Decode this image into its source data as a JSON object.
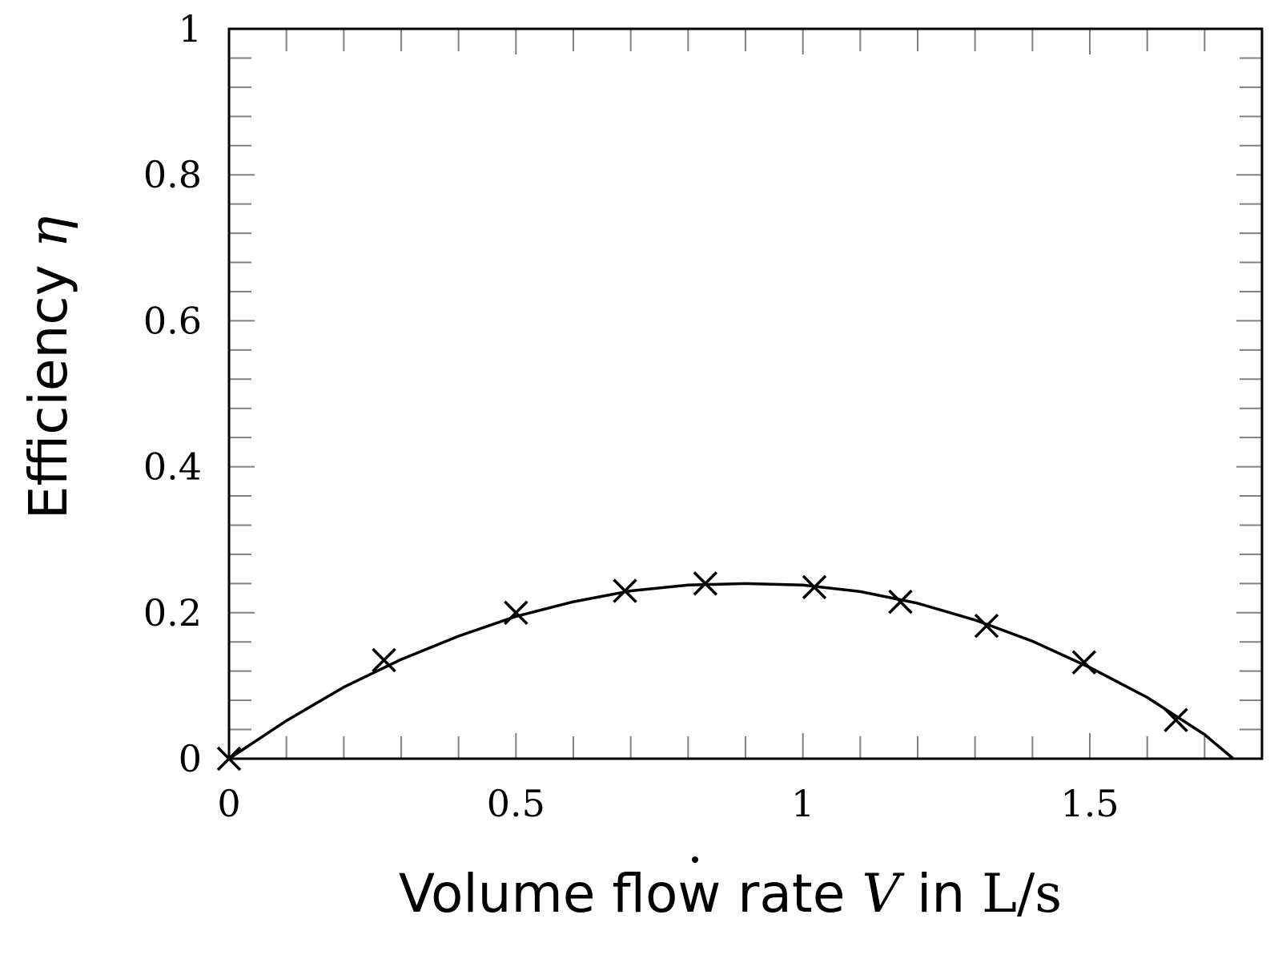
{
  "chart_data": {
    "type": "line",
    "title": "",
    "xlabel": {
      "prefix": "Volume flow rate ",
      "symbol": "V",
      "middle": " in ",
      "unit": "L/s"
    },
    "ylabel": {
      "prefix": "Efficiency ",
      "symbol": "η"
    },
    "xlim": [
      0,
      1.8
    ],
    "ylim": [
      0,
      1
    ],
    "xticks": [
      {
        "value": 0,
        "label": "0"
      },
      {
        "value": 0.5,
        "label": "0.5"
      },
      {
        "value": 1,
        "label": "1"
      },
      {
        "value": 1.5,
        "label": "1.5"
      }
    ],
    "yticks": [
      {
        "value": 0,
        "label": "0"
      },
      {
        "value": 0.2,
        "label": "0.2"
      },
      {
        "value": 0.4,
        "label": "0.4"
      },
      {
        "value": 0.6,
        "label": "0.6"
      },
      {
        "value": 0.8,
        "label": "0.8"
      },
      {
        "value": 1,
        "label": "1"
      }
    ],
    "x_minor_step": 0.1,
    "y_minor_step": 0.04,
    "grid": false,
    "series": [
      {
        "kind": "measured",
        "marker": "cross",
        "x": [
          0,
          0.27,
          0.5,
          0.69,
          0.83,
          1.02,
          1.17,
          1.32,
          1.49,
          1.65
        ],
        "y": [
          0,
          0.135,
          0.2,
          0.23,
          0.24,
          0.235,
          0.215,
          0.182,
          0.132,
          0.053
        ]
      },
      {
        "kind": "fit",
        "line": "solid",
        "x": [
          0,
          0.1,
          0.2,
          0.3,
          0.4,
          0.5,
          0.6,
          0.7,
          0.8,
          0.9,
          1.0,
          1.1,
          1.2,
          1.3,
          1.4,
          1.5,
          1.6,
          1.7,
          1.75
        ],
        "y": [
          0,
          0.052,
          0.098,
          0.136,
          0.168,
          0.195,
          0.215,
          0.23,
          0.238,
          0.24,
          0.238,
          0.229,
          0.213,
          0.19,
          0.161,
          0.125,
          0.084,
          0.033,
          0
        ]
      }
    ],
    "colors": {
      "line": "#000000",
      "frame": "#000000",
      "minor_tick": "#808080"
    }
  }
}
